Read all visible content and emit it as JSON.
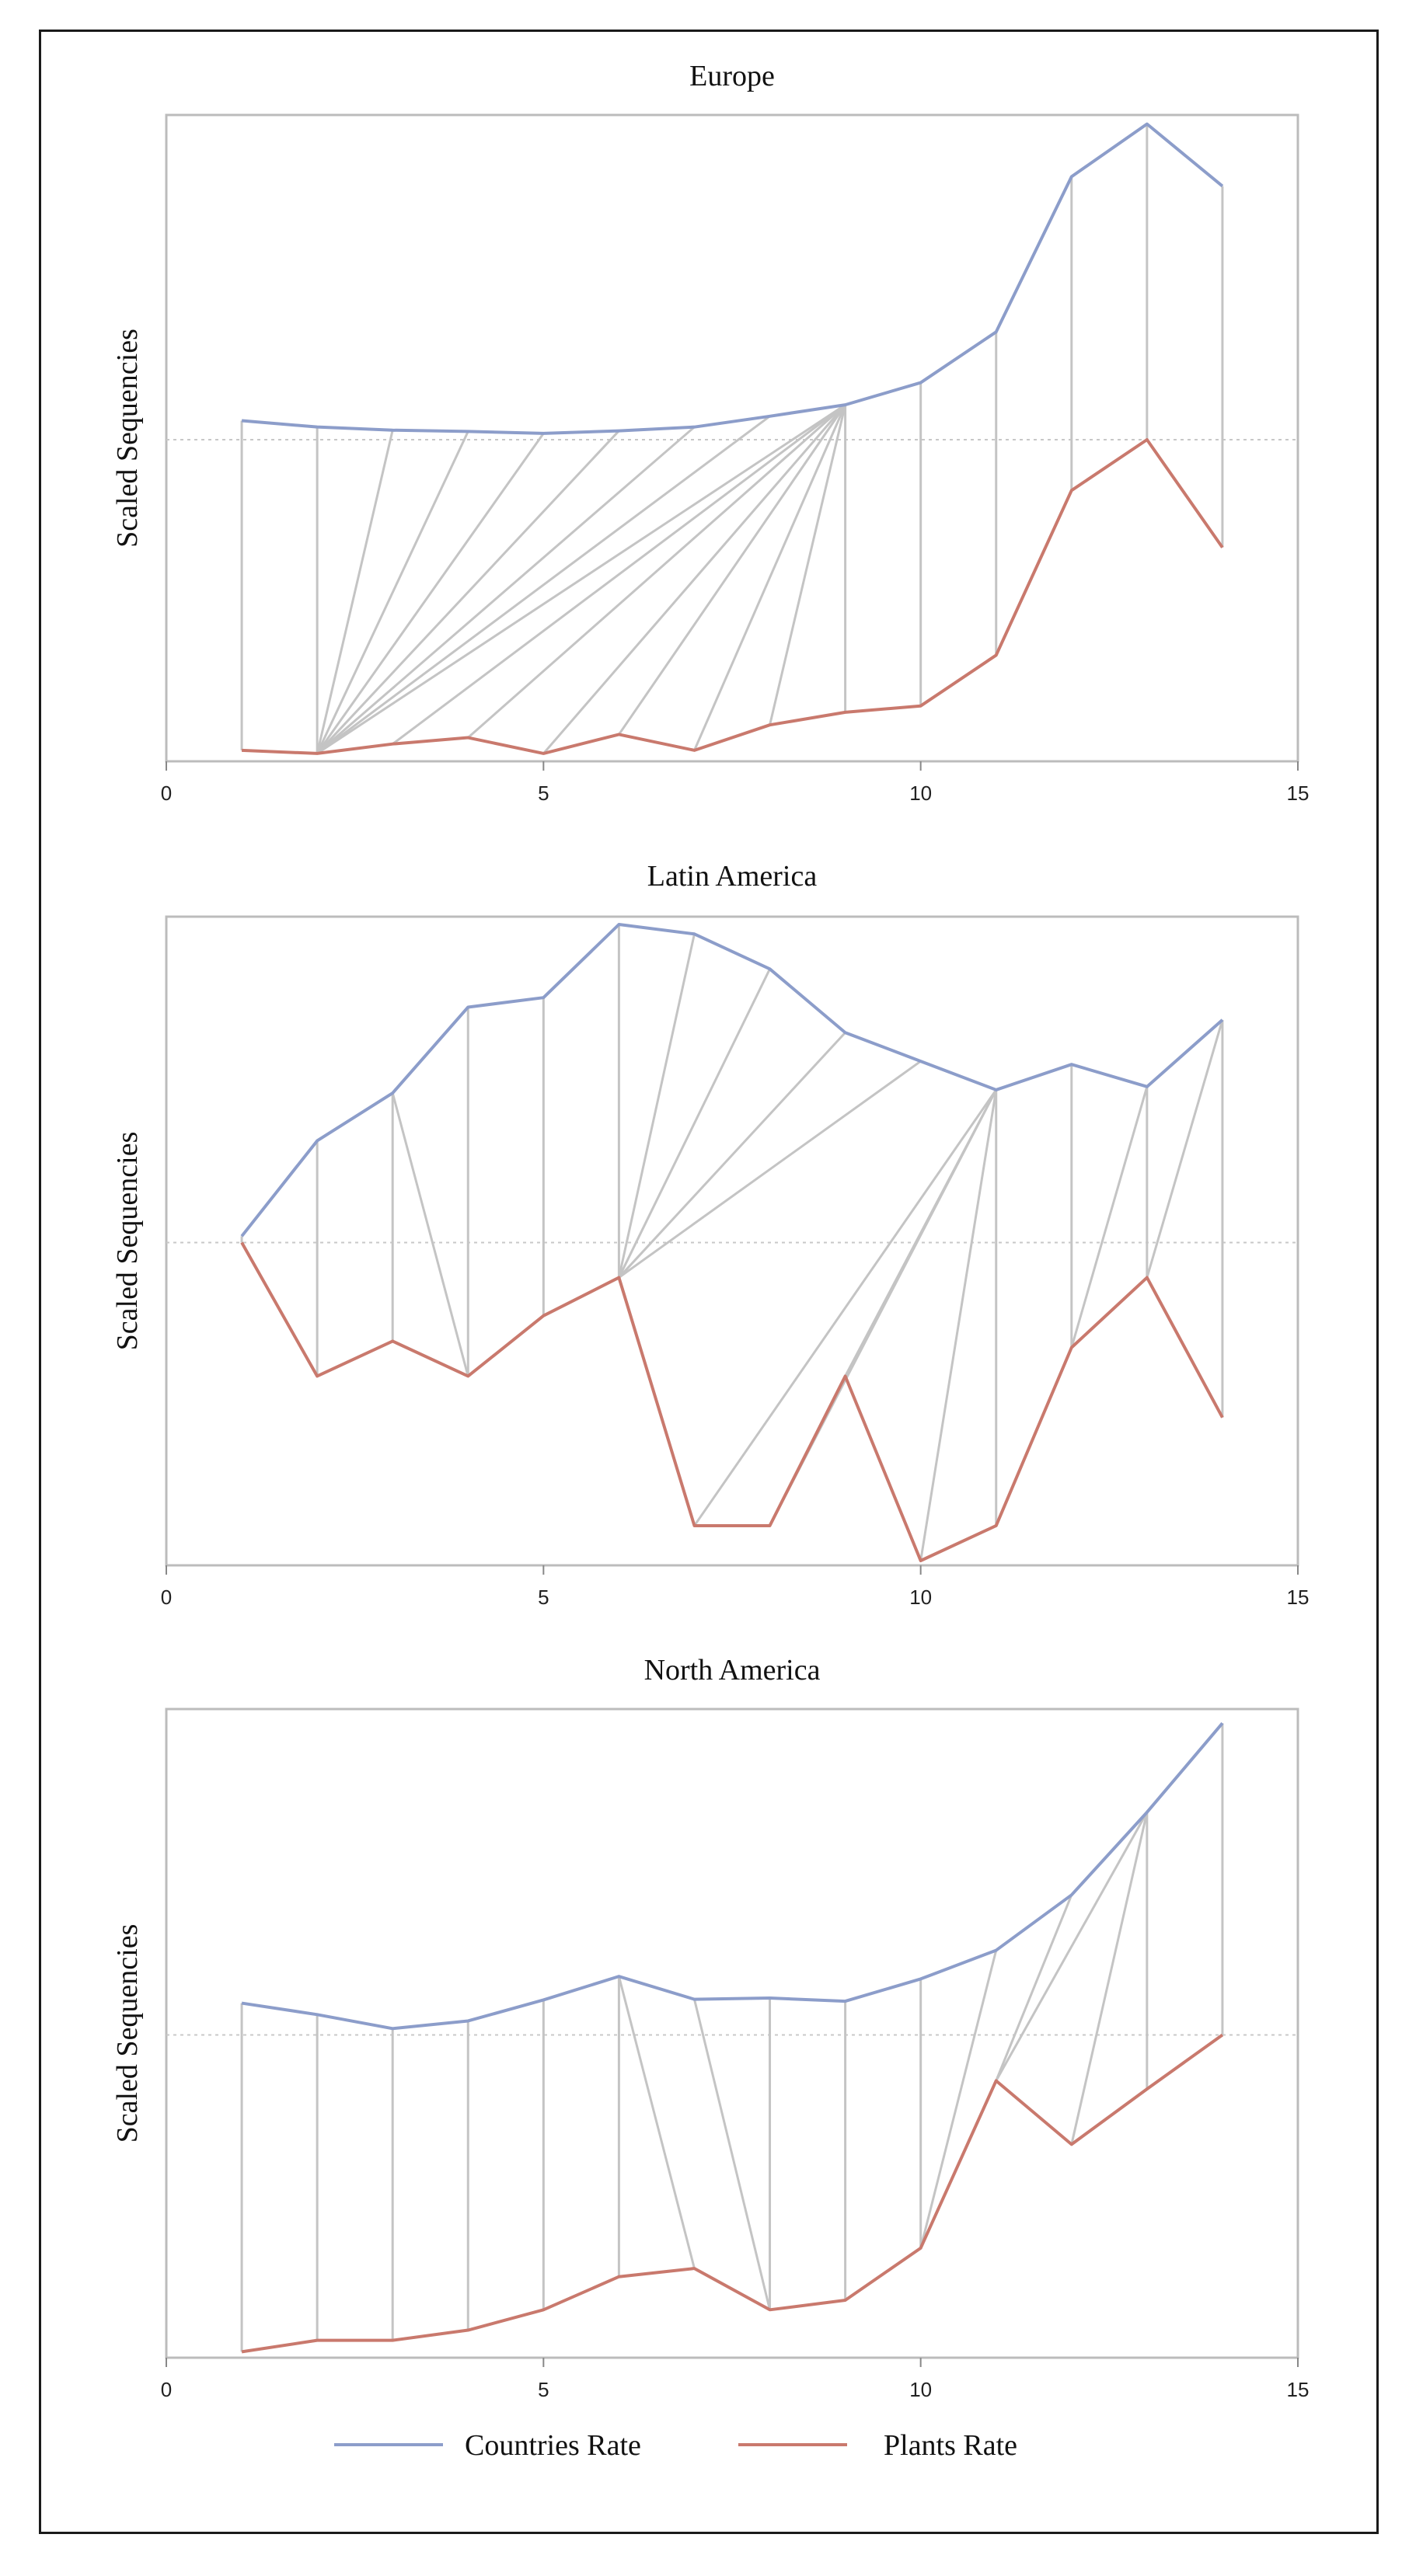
{
  "chart_data": [
    {
      "type": "line",
      "title": "Europe",
      "ylabel": "Scaled Sequencies",
      "xlabel": "",
      "xlim": [
        0,
        15
      ],
      "ylim": [
        0,
        1
      ],
      "xticks": [
        "0",
        "5",
        "10",
        "15"
      ],
      "reference_line_y": 0.5,
      "x": [
        1,
        2,
        3,
        4,
        5,
        6,
        7,
        8,
        9,
        10,
        11,
        12,
        13,
        14
      ],
      "series": [
        {
          "name": "Countries Rate",
          "color": "#8c9dca",
          "values": [
            0.53,
            0.52,
            0.515,
            0.513,
            0.51,
            0.514,
            0.52,
            0.537,
            0.555,
            0.59,
            0.67,
            0.915,
            0.998,
            0.9
          ]
        },
        {
          "name": "Plants Rate",
          "color": "#c9796d",
          "values": [
            0.01,
            0.005,
            0.02,
            0.03,
            0.005,
            0.035,
            0.01,
            0.05,
            0.07,
            0.08,
            0.16,
            0.42,
            0.5,
            0.33
          ]
        }
      ],
      "connections": [
        [
          1,
          1
        ],
        [
          2,
          2
        ],
        [
          3,
          2
        ],
        [
          4,
          2
        ],
        [
          5,
          2
        ],
        [
          6,
          2
        ],
        [
          7,
          2
        ],
        [
          8,
          2
        ],
        [
          9,
          2
        ],
        [
          9,
          3
        ],
        [
          9,
          4
        ],
        [
          9,
          5
        ],
        [
          9,
          6
        ],
        [
          9,
          7
        ],
        [
          9,
          8
        ],
        [
          9,
          9
        ],
        [
          10,
          10
        ],
        [
          11,
          11
        ],
        [
          12,
          12
        ],
        [
          13,
          13
        ],
        [
          14,
          14
        ]
      ]
    },
    {
      "type": "line",
      "title": "Latin America",
      "ylabel": "Scaled Sequencies",
      "xlabel": "",
      "xlim": [
        0,
        15
      ],
      "ylim": [
        0,
        1
      ],
      "xticks": [
        "0",
        "5",
        "10",
        "15"
      ],
      "reference_line_y": 0.5,
      "x": [
        1,
        2,
        3,
        4,
        5,
        6,
        7,
        8,
        9,
        10,
        11,
        12,
        13,
        14
      ],
      "series": [
        {
          "name": "Countries Rate",
          "color": "#8c9dca",
          "values": [
            0.51,
            0.66,
            0.735,
            0.87,
            0.885,
            1.0,
            0.985,
            0.93,
            0.83,
            0.785,
            0.74,
            0.78,
            0.745,
            0.85
          ]
        },
        {
          "name": "Plants Rate",
          "color": "#c9796d",
          "values": [
            0.5,
            0.29,
            0.345,
            0.29,
            0.385,
            0.445,
            0.055,
            0.055,
            0.29,
            0.0,
            0.055,
            0.335,
            0.445,
            0.225
          ]
        }
      ],
      "connections": [
        [
          1,
          1
        ],
        [
          2,
          2
        ],
        [
          3,
          3
        ],
        [
          3,
          4
        ],
        [
          4,
          4
        ],
        [
          5,
          5
        ],
        [
          6,
          6
        ],
        [
          7,
          6
        ],
        [
          8,
          6
        ],
        [
          9,
          6
        ],
        [
          10,
          6
        ],
        [
          11,
          7
        ],
        [
          11,
          8
        ],
        [
          11,
          9
        ],
        [
          11,
          10
        ],
        [
          11,
          11
        ],
        [
          12,
          12
        ],
        [
          13,
          12
        ],
        [
          13,
          13
        ],
        [
          14,
          13
        ],
        [
          14,
          14
        ]
      ]
    },
    {
      "type": "line",
      "title": "North America",
      "ylabel": "Scaled Sequencies",
      "xlabel": "",
      "xlim": [
        0,
        15
      ],
      "ylim": [
        0,
        1
      ],
      "xticks": [
        "0",
        "5",
        "10",
        "15"
      ],
      "reference_line_y": 0.5,
      "x": [
        1,
        2,
        3,
        4,
        5,
        6,
        7,
        8,
        9,
        10,
        11,
        12,
        13,
        14
      ],
      "series": [
        {
          "name": "Countries Rate",
          "color": "#8c9dca",
          "values": [
            0.55,
            0.532,
            0.51,
            0.522,
            0.555,
            0.592,
            0.556,
            0.558,
            0.553,
            0.588,
            0.633,
            0.72,
            0.85,
            0.99
          ]
        },
        {
          "name": "Plants Rate",
          "color": "#c9796d",
          "values": [
            0.002,
            0.02,
            0.02,
            0.036,
            0.068,
            0.12,
            0.133,
            0.068,
            0.083,
            0.165,
            0.428,
            0.328,
            0.415,
            0.5
          ]
        }
      ],
      "connections": [
        [
          1,
          1
        ],
        [
          2,
          2
        ],
        [
          3,
          3
        ],
        [
          4,
          4
        ],
        [
          5,
          5
        ],
        [
          6,
          6
        ],
        [
          6,
          7
        ],
        [
          7,
          8
        ],
        [
          8,
          8
        ],
        [
          9,
          9
        ],
        [
          10,
          10
        ],
        [
          11,
          10
        ],
        [
          12,
          11
        ],
        [
          13,
          11
        ],
        [
          13,
          12
        ],
        [
          13,
          13
        ],
        [
          14,
          14
        ]
      ]
    }
  ],
  "legend": [
    {
      "label": "Countries Rate",
      "color": "#8c9dca"
    },
    {
      "label": "Plants Rate",
      "color": "#c9796d"
    }
  ]
}
